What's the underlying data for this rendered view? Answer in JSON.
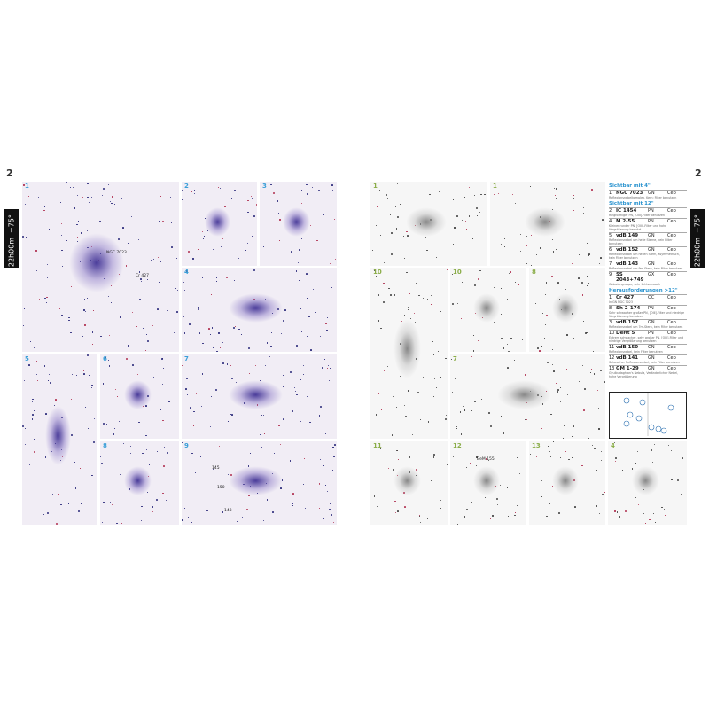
{
  "left_page": {
    "page_number": "2",
    "tab": {
      "declination": "+75°",
      "right_ascension": "22h00m"
    },
    "panels": [
      {
        "number": "1",
        "labels": [
          "NGC 7023",
          "Cr 427"
        ]
      },
      {
        "number": "2",
        "labels": []
      },
      {
        "number": "3",
        "labels": []
      },
      {
        "number": "4",
        "labels": []
      },
      {
        "number": "5",
        "labels": []
      },
      {
        "number": "6",
        "labels": []
      },
      {
        "number": "7",
        "labels": []
      },
      {
        "number": "8",
        "labels": []
      },
      {
        "number": "9",
        "labels": [
          "150",
          "145",
          "143"
        ]
      }
    ]
  },
  "right_page": {
    "page_number": "2",
    "tab": {
      "declination": "+75°",
      "right_ascension": "22h00m"
    },
    "panels": [
      {
        "number": "1",
        "labels": []
      },
      {
        "number": "1",
        "labels": []
      },
      {
        "number": "10",
        "labels": []
      },
      {
        "number": "10",
        "labels": []
      },
      {
        "number": "8",
        "labels": []
      },
      {
        "number": "7",
        "labels": []
      },
      {
        "number": "11",
        "labels": []
      },
      {
        "number": "12",
        "labels": [
          "BeM 155"
        ]
      },
      {
        "number": "13",
        "labels": []
      },
      {
        "number": "4",
        "labels": []
      }
    ],
    "list": [
      {
        "heading": "Sichtbar mit 4\"",
        "entries": [
          {
            "number": "1",
            "name": "NGC 7023",
            "type": "GN",
            "constellation": "Cep",
            "description": "Reflexionsnebelkomplex, Kern: Filter benutzen"
          }
        ]
      },
      {
        "heading": "Sichtbar mit 12\"",
        "entries": [
          {
            "number": "2",
            "name": "IC 1454",
            "type": "PN",
            "constellation": "Cep",
            "description": "Ringförmiger PN, [OIII]-Filter benutzen"
          },
          {
            "number": "4",
            "name": "M 2-55",
            "type": "PN",
            "constellation": "Cep",
            "description": "Kleiner runder PN, [OIII]-Filter und hohe Vergrößerung benutzt"
          },
          {
            "number": "5",
            "name": "vdB 149",
            "type": "GN",
            "constellation": "Cep",
            "description": "Reflexionsnebel um helle Sterne, kein Filter benutzen"
          },
          {
            "number": "6",
            "name": "vdB 152",
            "type": "GN",
            "constellation": "Cep",
            "description": "Reflexionsnebel um hellen Stern, asymmetrisch, kein Filter benutzen"
          },
          {
            "number": "7",
            "name": "vdB 143",
            "type": "GN",
            "constellation": "Cep",
            "description": "Reflexionsnebel um 9m-Stern, kein Filter benutzen"
          },
          {
            "number": "9",
            "name": "SS 2043+749",
            "type": "GX",
            "constellation": "Cep",
            "description": "Galaxiengruppe, sehr lichtschwach"
          }
        ]
      },
      {
        "heading": "Herausforderungen >12\"",
        "entries": [
          {
            "number": "1",
            "name": "Cr 427",
            "type": "OC",
            "constellation": "Cep",
            "description": "In GN NGC 7023"
          },
          {
            "number": "8",
            "name": "Sh 2-174",
            "type": "PN",
            "constellation": "Cep",
            "description": "Sehr schwacher großer PN, [OIII]-Filter und niedrige Vergrößerung benutzen"
          },
          {
            "number": "3",
            "name": "vdB 157",
            "type": "GN",
            "constellation": "Cep",
            "description": "Reflexionsnebel um 7m-Stern, kein Filter benutzen"
          },
          {
            "number": "10",
            "name": "DeHt 5",
            "type": "PN",
            "constellation": "Cep",
            "description": "Extrem schwacher, sehr großer PN, [OIII]-Filter und niedrige Vergrößerung benutzen"
          },
          {
            "number": "11",
            "name": "vdB 150",
            "type": "GN",
            "constellation": "Cep",
            "description": "Reflexionsnebel, kein Filter benutzen"
          },
          {
            "number": "12",
            "name": "vdB 141",
            "type": "GN",
            "constellation": "Cep",
            "description": "Schwacher Reflexionsnebel, kein Filter benutzen"
          },
          {
            "number": "13",
            "name": "GM 1-29",
            "type": "GN",
            "constellation": "Cep",
            "description": "Gyulbudaghian's Nebula, Veränderlicher Nebel, hohe Vergrößerung"
          }
        ]
      }
    ]
  }
}
